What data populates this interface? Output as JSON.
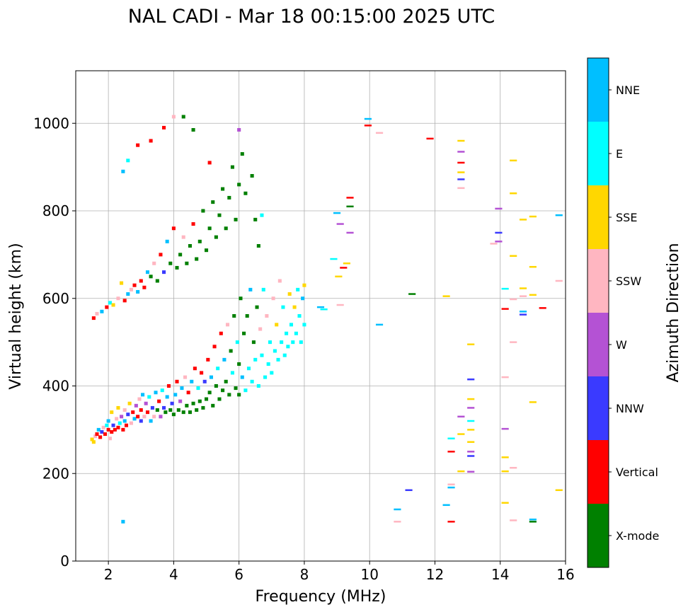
{
  "chart_data": {
    "type": "scatter",
    "title": "NAL CADI - Mar 18 00:15:00 2025 UTC",
    "xlabel": "Frequency (MHz)",
    "ylabel": "Virtual height (km)",
    "xlim": [
      1,
      16
    ],
    "ylim": [
      0,
      1120
    ],
    "xticks": [
      2,
      4,
      6,
      8,
      10,
      12,
      14,
      16
    ],
    "yticks": [
      0,
      200,
      400,
      600,
      800,
      1000
    ],
    "grid": true,
    "colorbar": {
      "label": "Azimuth Direction",
      "categories": [
        "X-mode",
        "Vertical",
        "NNW",
        "W",
        "SSW",
        "SSE",
        "E",
        "NNE"
      ],
      "colors": [
        "#008000",
        "#ff0000",
        "#3a3aff",
        "#b452d4",
        "#ffb6c1",
        "#ffd700",
        "#00ffff",
        "#00bfff"
      ]
    },
    "points_format": [
      "frequency_mhz",
      "height_km",
      "category_index"
    ],
    "points": [
      [
        1.5,
        278,
        5
      ],
      [
        1.55,
        272,
        5
      ],
      [
        1.6,
        285,
        4
      ],
      [
        1.65,
        290,
        1
      ],
      [
        1.7,
        300,
        7
      ],
      [
        1.75,
        283,
        1
      ],
      [
        1.8,
        295,
        2
      ],
      [
        1.85,
        305,
        4
      ],
      [
        1.9,
        290,
        1
      ],
      [
        1.95,
        310,
        6
      ],
      [
        2.0,
        300,
        1
      ],
      [
        2.0,
        320,
        7
      ],
      [
        2.05,
        280,
        4
      ],
      [
        2.1,
        295,
        1
      ],
      [
        2.1,
        340,
        5
      ],
      [
        2.15,
        310,
        2
      ],
      [
        2.2,
        300,
        1
      ],
      [
        2.25,
        325,
        4
      ],
      [
        2.3,
        305,
        1
      ],
      [
        2.3,
        350,
        5
      ],
      [
        2.35,
        315,
        6
      ],
      [
        2.4,
        330,
        3
      ],
      [
        2.45,
        300,
        1
      ],
      [
        2.5,
        320,
        7
      ],
      [
        2.5,
        345,
        4
      ],
      [
        2.55,
        310,
        1
      ],
      [
        2.6,
        335,
        2
      ],
      [
        2.65,
        360,
        5
      ],
      [
        2.7,
        315,
        4
      ],
      [
        2.75,
        340,
        1
      ],
      [
        2.8,
        325,
        7
      ],
      [
        2.85,
        355,
        3
      ],
      [
        2.9,
        330,
        1
      ],
      [
        2.95,
        370,
        4
      ],
      [
        3.0,
        320,
        2
      ],
      [
        3.0,
        345,
        1
      ],
      [
        3.05,
        380,
        7
      ],
      [
        3.1,
        330,
        4
      ],
      [
        3.15,
        360,
        3
      ],
      [
        3.2,
        340,
        1
      ],
      [
        3.25,
        375,
        6
      ],
      [
        3.3,
        320,
        7
      ],
      [
        3.35,
        350,
        2
      ],
      [
        3.4,
        330,
        4
      ],
      [
        3.45,
        385,
        7
      ],
      [
        3.5,
        345,
        0
      ],
      [
        3.55,
        365,
        1
      ],
      [
        3.6,
        330,
        3
      ],
      [
        3.65,
        390,
        6
      ],
      [
        3.7,
        350,
        2
      ],
      [
        3.75,
        340,
        0
      ],
      [
        3.8,
        375,
        7
      ],
      [
        3.85,
        400,
        1
      ],
      [
        3.9,
        345,
        0
      ],
      [
        3.95,
        360,
        2
      ],
      [
        4.0,
        335,
        0
      ],
      [
        4.05,
        380,
        7
      ],
      [
        4.1,
        410,
        1
      ],
      [
        4.15,
        345,
        0
      ],
      [
        4.2,
        365,
        3
      ],
      [
        4.25,
        395,
        7
      ],
      [
        4.3,
        340,
        0
      ],
      [
        4.35,
        420,
        4
      ],
      [
        4.4,
        355,
        0
      ],
      [
        4.45,
        385,
        1
      ],
      [
        4.5,
        340,
        0
      ],
      [
        4.55,
        410,
        7
      ],
      [
        4.6,
        360,
        0
      ],
      [
        4.65,
        440,
        1
      ],
      [
        4.7,
        345,
        0
      ],
      [
        4.75,
        395,
        6
      ],
      [
        4.8,
        365,
        0
      ],
      [
        4.85,
        430,
        1
      ],
      [
        4.9,
        350,
        0
      ],
      [
        4.95,
        410,
        2
      ],
      [
        5.0,
        370,
        0
      ],
      [
        5.05,
        460,
        1
      ],
      [
        5.1,
        385,
        0
      ],
      [
        5.15,
        420,
        7
      ],
      [
        5.2,
        355,
        0
      ],
      [
        5.25,
        490,
        1
      ],
      [
        5.3,
        400,
        0
      ],
      [
        5.35,
        440,
        6
      ],
      [
        5.4,
        370,
        0
      ],
      [
        5.45,
        520,
        1
      ],
      [
        5.5,
        390,
        0
      ],
      [
        5.55,
        460,
        7
      ],
      [
        5.6,
        410,
        0
      ],
      [
        5.65,
        540,
        4
      ],
      [
        5.7,
        380,
        0
      ],
      [
        5.75,
        480,
        0
      ],
      [
        5.8,
        430,
        6
      ],
      [
        5.85,
        560,
        0
      ],
      [
        5.9,
        395,
        0
      ],
      [
        5.95,
        500,
        6
      ],
      [
        6.0,
        380,
        0
      ],
      [
        6.0,
        450,
        0
      ],
      [
        6.05,
        600,
        0
      ],
      [
        6.1,
        420,
        7
      ],
      [
        6.15,
        520,
        0
      ],
      [
        6.2,
        390,
        6
      ],
      [
        6.25,
        560,
        0
      ],
      [
        6.3,
        440,
        6
      ],
      [
        6.35,
        620,
        7
      ],
      [
        6.4,
        410,
        6
      ],
      [
        6.45,
        500,
        0
      ],
      [
        6.5,
        460,
        6
      ],
      [
        6.55,
        580,
        0
      ],
      [
        6.6,
        400,
        6
      ],
      [
        6.65,
        530,
        4
      ],
      [
        6.7,
        470,
        6
      ],
      [
        6.75,
        620,
        6
      ],
      [
        6.8,
        420,
        6
      ],
      [
        6.85,
        560,
        4
      ],
      [
        6.9,
        450,
        6
      ],
      [
        6.95,
        500,
        6
      ],
      [
        7.0,
        430,
        6
      ],
      [
        7.05,
        600,
        4
      ],
      [
        7.1,
        480,
        6
      ],
      [
        7.15,
        540,
        5
      ],
      [
        7.2,
        460,
        6
      ],
      [
        7.25,
        640,
        4
      ],
      [
        7.3,
        500,
        6
      ],
      [
        7.35,
        580,
        6
      ],
      [
        7.4,
        470,
        6
      ],
      [
        7.45,
        520,
        6
      ],
      [
        7.5,
        490,
        6
      ],
      [
        7.55,
        610,
        5
      ],
      [
        7.6,
        540,
        6
      ],
      [
        7.65,
        500,
        6
      ],
      [
        7.7,
        580,
        5
      ],
      [
        7.75,
        520,
        6
      ],
      [
        7.8,
        620,
        6
      ],
      [
        7.85,
        560,
        6
      ],
      [
        7.9,
        500,
        6
      ],
      [
        7.95,
        600,
        7
      ],
      [
        8.0,
        540,
        6
      ],
      [
        8.0,
        630,
        5
      ],
      [
        1.55,
        555,
        1
      ],
      [
        1.65,
        565,
        4
      ],
      [
        1.8,
        570,
        7
      ],
      [
        1.95,
        580,
        1
      ],
      [
        2.05,
        590,
        6
      ],
      [
        2.15,
        585,
        5
      ],
      [
        2.3,
        600,
        4
      ],
      [
        2.4,
        635,
        5
      ],
      [
        2.5,
        595,
        1
      ],
      [
        2.6,
        610,
        7
      ],
      [
        2.7,
        620,
        4
      ],
      [
        2.8,
        630,
        1
      ],
      [
        2.9,
        615,
        7
      ],
      [
        3.0,
        640,
        1
      ],
      [
        3.1,
        625,
        1
      ],
      [
        3.2,
        660,
        7
      ],
      [
        3.3,
        650,
        0
      ],
      [
        3.4,
        680,
        4
      ],
      [
        3.5,
        640,
        0
      ],
      [
        3.6,
        700,
        1
      ],
      [
        3.7,
        660,
        2
      ],
      [
        3.8,
        730,
        7
      ],
      [
        3.9,
        680,
        0
      ],
      [
        4.0,
        760,
        1
      ],
      [
        4.1,
        670,
        0
      ],
      [
        4.2,
        700,
        0
      ],
      [
        4.3,
        740,
        4
      ],
      [
        4.4,
        680,
        0
      ],
      [
        4.5,
        720,
        0
      ],
      [
        4.6,
        770,
        1
      ],
      [
        4.7,
        690,
        0
      ],
      [
        4.8,
        730,
        0
      ],
      [
        4.9,
        800,
        0
      ],
      [
        5.0,
        710,
        0
      ],
      [
        5.1,
        760,
        0
      ],
      [
        5.2,
        820,
        0
      ],
      [
        5.3,
        740,
        0
      ],
      [
        5.4,
        790,
        0
      ],
      [
        5.5,
        850,
        0
      ],
      [
        5.6,
        760,
        0
      ],
      [
        5.7,
        830,
        0
      ],
      [
        5.8,
        900,
        0
      ],
      [
        5.9,
        780,
        0
      ],
      [
        6.0,
        860,
        0
      ],
      [
        6.1,
        930,
        0
      ],
      [
        6.2,
        840,
        0
      ],
      [
        6.4,
        880,
        0
      ],
      [
        6.5,
        780,
        0
      ],
      [
        6.6,
        720,
        0
      ],
      [
        6.7,
        790,
        6
      ],
      [
        2.9,
        950,
        1
      ],
      [
        3.3,
        960,
        1
      ],
      [
        3.7,
        990,
        1
      ],
      [
        4.0,
        1015,
        4
      ],
      [
        4.3,
        1015,
        0
      ],
      [
        4.6,
        985,
        0
      ],
      [
        5.1,
        910,
        1
      ],
      [
        2.45,
        890,
        7
      ],
      [
        2.6,
        915,
        6
      ],
      [
        6.0,
        985,
        3
      ],
      [
        2.45,
        90,
        7
      ],
      [
        8.6,
        575,
        6
      ],
      [
        8.5,
        580,
        7
      ],
      [
        8.9,
        690,
        6
      ],
      [
        9.05,
        650,
        5
      ],
      [
        9.1,
        770,
        3
      ],
      [
        9.2,
        670,
        1
      ],
      [
        9.3,
        680,
        5
      ],
      [
        9.4,
        810,
        0
      ],
      [
        9.4,
        830,
        1
      ],
      [
        9.4,
        750,
        3
      ],
      [
        9.0,
        795,
        7
      ],
      [
        9.1,
        585,
        4
      ],
      [
        9.95,
        1010,
        7
      ],
      [
        9.95,
        995,
        1
      ],
      [
        10.3,
        540,
        7
      ],
      [
        10.3,
        978,
        4
      ],
      [
        10.85,
        118,
        7
      ],
      [
        10.85,
        90,
        4
      ],
      [
        11.2,
        162,
        2
      ],
      [
        11.3,
        610,
        0
      ],
      [
        11.85,
        965,
        1
      ],
      [
        12.35,
        605,
        5
      ],
      [
        12.35,
        128,
        7
      ],
      [
        12.5,
        280,
        6
      ],
      [
        12.5,
        175,
        4
      ],
      [
        12.5,
        168,
        7
      ],
      [
        12.5,
        250,
        1
      ],
      [
        12.5,
        90,
        1
      ],
      [
        12.8,
        960,
        5
      ],
      [
        12.8,
        935,
        3
      ],
      [
        12.8,
        910,
        1
      ],
      [
        12.8,
        888,
        5
      ],
      [
        12.8,
        872,
        2
      ],
      [
        12.8,
        852,
        4
      ],
      [
        12.8,
        290,
        5
      ],
      [
        12.8,
        330,
        3
      ],
      [
        12.8,
        205,
        5
      ],
      [
        13.1,
        495,
        5
      ],
      [
        13.1,
        415,
        2
      ],
      [
        13.1,
        370,
        5
      ],
      [
        13.1,
        350,
        3
      ],
      [
        13.1,
        320,
        6
      ],
      [
        13.1,
        300,
        5
      ],
      [
        13.1,
        272,
        5
      ],
      [
        13.1,
        250,
        3
      ],
      [
        13.1,
        240,
        2
      ],
      [
        13.1,
        204,
        3
      ],
      [
        13.8,
        725,
        4
      ],
      [
        13.95,
        805,
        3
      ],
      [
        13.95,
        750,
        2
      ],
      [
        13.95,
        730,
        3
      ],
      [
        14.15,
        622,
        6
      ],
      [
        14.15,
        576,
        1
      ],
      [
        14.15,
        420,
        4
      ],
      [
        14.15,
        302,
        3
      ],
      [
        14.15,
        237,
        5
      ],
      [
        14.15,
        205,
        5
      ],
      [
        14.15,
        133,
        5
      ],
      [
        14.4,
        915,
        5
      ],
      [
        14.4,
        840,
        5
      ],
      [
        14.4,
        697,
        5
      ],
      [
        14.4,
        598,
        4
      ],
      [
        14.4,
        500,
        4
      ],
      [
        14.4,
        213,
        4
      ],
      [
        14.4,
        93,
        4
      ],
      [
        14.7,
        780,
        5
      ],
      [
        14.7,
        623,
        5
      ],
      [
        14.7,
        605,
        4
      ],
      [
        14.7,
        570,
        7
      ],
      [
        14.7,
        563,
        2
      ],
      [
        15.0,
        787,
        5
      ],
      [
        15.0,
        672,
        5
      ],
      [
        15.0,
        608,
        5
      ],
      [
        15.0,
        363,
        5
      ],
      [
        15.0,
        95,
        7
      ],
      [
        15.0,
        90,
        0
      ],
      [
        15.3,
        578,
        1
      ],
      [
        15.8,
        790,
        7
      ],
      [
        15.8,
        640,
        4
      ],
      [
        15.8,
        162,
        5
      ]
    ]
  }
}
